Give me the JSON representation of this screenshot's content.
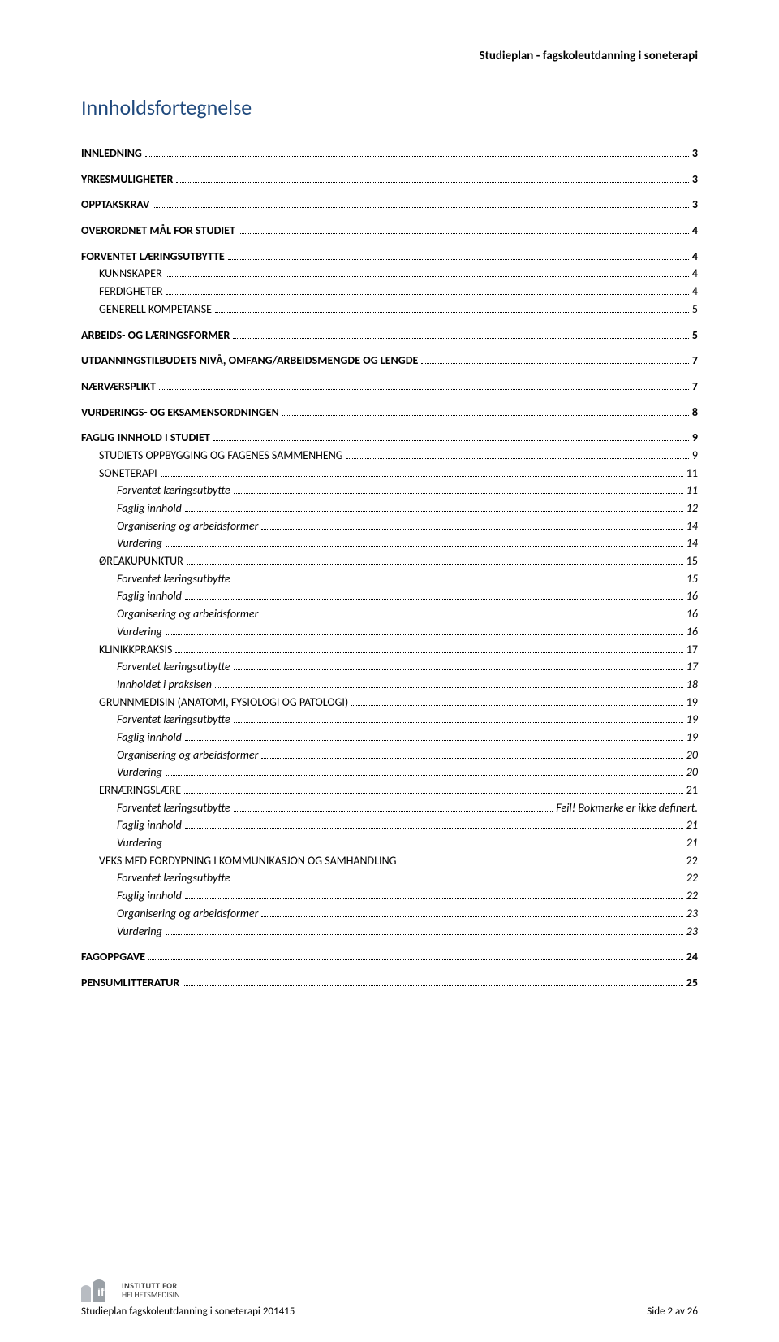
{
  "header": "Studieplan - fagskoleutdanning i soneterapi",
  "title": "Innholdsfortegnelse",
  "toc": [
    {
      "label": "INNLEDNING",
      "page": "3",
      "level": 1,
      "gap": false
    },
    {
      "label": "YRKESMULIGHETER",
      "page": "3",
      "level": 1,
      "gap": true
    },
    {
      "label": "OPPTAKSKRAV",
      "page": "3",
      "level": 1,
      "gap": true
    },
    {
      "label": "OVERORDNET MÅL FOR STUDIET",
      "page": "4",
      "level": 1,
      "gap": true
    },
    {
      "label": "FORVENTET LÆRINGSUTBYTTE",
      "page": "4",
      "level": 1,
      "gap": true
    },
    {
      "label": "KUNNSKAPER",
      "page": "4",
      "level": 2,
      "gap": false
    },
    {
      "label": "FERDIGHETER",
      "page": "4",
      "level": 2,
      "gap": false
    },
    {
      "label": "GENERELL KOMPETANSE",
      "page": "5",
      "level": 2,
      "gap": false
    },
    {
      "label": "ARBEIDS- OG LÆRINGSFORMER",
      "page": "5",
      "level": 1,
      "gap": true
    },
    {
      "label": "UTDANNINGSTILBUDETS NIVÅ, OMFANG/ARBEIDSMENGDE OG LENGDE",
      "page": "7",
      "level": 1,
      "gap": true
    },
    {
      "label": "NÆRVÆRSPLIKT",
      "page": "7",
      "level": 1,
      "gap": true
    },
    {
      "label": "VURDERINGS- OG EKSAMENSORDNINGEN",
      "page": "8",
      "level": 1,
      "gap": true
    },
    {
      "label": "FAGLIG INNHOLD I STUDIET",
      "page": "9",
      "level": 1,
      "gap": true
    },
    {
      "label": "STUDIETS OPPBYGGING OG FAGENES SAMMENHENG",
      "page": "9",
      "level": 2,
      "gap": false
    },
    {
      "label": "SONETERAPI",
      "page": "11",
      "level": 2,
      "gap": false
    },
    {
      "label": "Forventet læringsutbytte",
      "page": "11",
      "level": 3,
      "gap": false
    },
    {
      "label": "Faglig innhold",
      "page": "12",
      "level": 3,
      "gap": false
    },
    {
      "label": "Organisering og arbeidsformer",
      "page": "14",
      "level": 3,
      "gap": false
    },
    {
      "label": "Vurdering",
      "page": "14",
      "level": 3,
      "gap": false
    },
    {
      "label": "ØREAKUPUNKTUR",
      "page": "15",
      "level": 2,
      "gap": false
    },
    {
      "label": "Forventet læringsutbytte",
      "page": "15",
      "level": 3,
      "gap": false
    },
    {
      "label": "Faglig innhold",
      "page": "16",
      "level": 3,
      "gap": false
    },
    {
      "label": "Organisering og arbeidsformer",
      "page": "16",
      "level": 3,
      "gap": false
    },
    {
      "label": "Vurdering",
      "page": "16",
      "level": 3,
      "gap": false
    },
    {
      "label": "KLINIKKPRAKSIS",
      "page": "17",
      "level": 2,
      "gap": false
    },
    {
      "label": "Forventet læringsutbytte",
      "page": "17",
      "level": 3,
      "gap": false
    },
    {
      "label": "Innholdet i praksisen",
      "page": "18",
      "level": 3,
      "gap": false
    },
    {
      "label": "GRUNNMEDISIN (ANATOMI, FYSIOLOGI OG PATOLOGI)",
      "page": "19",
      "level": 2,
      "gap": false
    },
    {
      "label": "Forventet læringsutbytte",
      "page": "19",
      "level": 3,
      "gap": false
    },
    {
      "label": "Faglig innhold",
      "page": "19",
      "level": 3,
      "gap": false
    },
    {
      "label": "Organisering og arbeidsformer",
      "page": "20",
      "level": 3,
      "gap": false
    },
    {
      "label": "Vurdering",
      "page": "20",
      "level": 3,
      "gap": false
    },
    {
      "label": "ERNÆRINGSLÆRE",
      "page": "21",
      "level": 2,
      "gap": false
    },
    {
      "label": "Forventet læringsutbytte",
      "page": "Feil! Bokmerke er ikke definert.",
      "level": 3,
      "gap": false,
      "nodots": false
    },
    {
      "label": "Faglig innhold",
      "page": "21",
      "level": 3,
      "gap": false
    },
    {
      "label": "Vurdering",
      "page": "21",
      "level": 3,
      "gap": false
    },
    {
      "label": "VEKS MED FORDYPNING I KOMMUNIKASJON OG SAMHANDLING",
      "page": "22",
      "level": 2,
      "gap": false
    },
    {
      "label": "Forventet læringsutbytte",
      "page": "22",
      "level": 3,
      "gap": false
    },
    {
      "label": "Faglig innhold",
      "page": "22",
      "level": 3,
      "gap": false
    },
    {
      "label": "Organisering og arbeidsformer",
      "page": "23",
      "level": 3,
      "gap": false
    },
    {
      "label": "Vurdering",
      "page": "23",
      "level": 3,
      "gap": false
    },
    {
      "label": "FAGOPPGAVE",
      "page": "24",
      "level": 1,
      "gap": true
    },
    {
      "label": "PENSUMLITTERATUR",
      "page": "25",
      "level": 1,
      "gap": true
    }
  ],
  "footer": {
    "logo_line1": "INSTITUTT FOR",
    "logo_line2": "HELHETSMEDISIN",
    "doc_title": "Studieplan fagskoleutdanning i soneterapi 201415",
    "page_label": "Side 2 av 26"
  },
  "colors": {
    "title": "#1f497d",
    "text": "#000000",
    "logo_gray": "#9aa0a6",
    "background": "#ffffff"
  }
}
